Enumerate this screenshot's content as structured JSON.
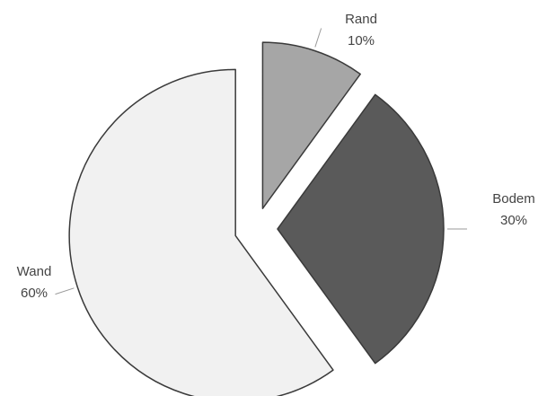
{
  "chart_data": {
    "type": "pie",
    "title": "",
    "slices": [
      {
        "label": "Rand",
        "value": 10,
        "percent_label": "10%",
        "color": "#a6a6a6"
      },
      {
        "label": "Bodem",
        "value": 30,
        "percent_label": "30%",
        "color": "#5a5a5a"
      },
      {
        "label": "Wand",
        "value": 60,
        "percent_label": "60%",
        "color": "#f1f1f1"
      }
    ],
    "exploded": true,
    "legend": "none"
  }
}
